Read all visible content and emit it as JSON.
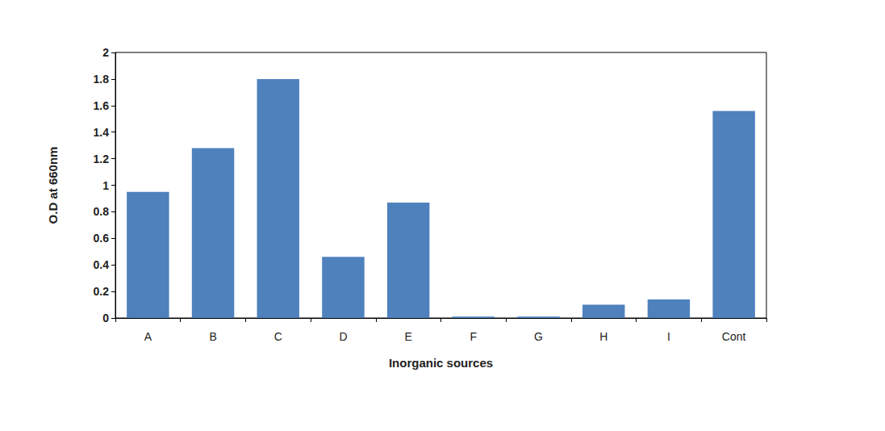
{
  "chart_data": {
    "type": "bar",
    "x_label": "Inorganic sources",
    "y_label": "O.D at 660nm",
    "categories": [
      "A",
      "B",
      "C",
      "D",
      "E",
      "F",
      "G",
      "H",
      "I",
      "Cont"
    ],
    "values": [
      0.95,
      1.28,
      1.8,
      0.46,
      0.87,
      0.01,
      0.01,
      0.1,
      0.14,
      1.56
    ],
    "color": "#4f81bd",
    "ylim": [
      0,
      2
    ],
    "yticks": [
      0,
      0.2,
      0.4,
      0.6,
      0.8,
      1,
      1.2,
      1.4,
      1.6,
      1.8,
      2
    ],
    "grid": false
  }
}
